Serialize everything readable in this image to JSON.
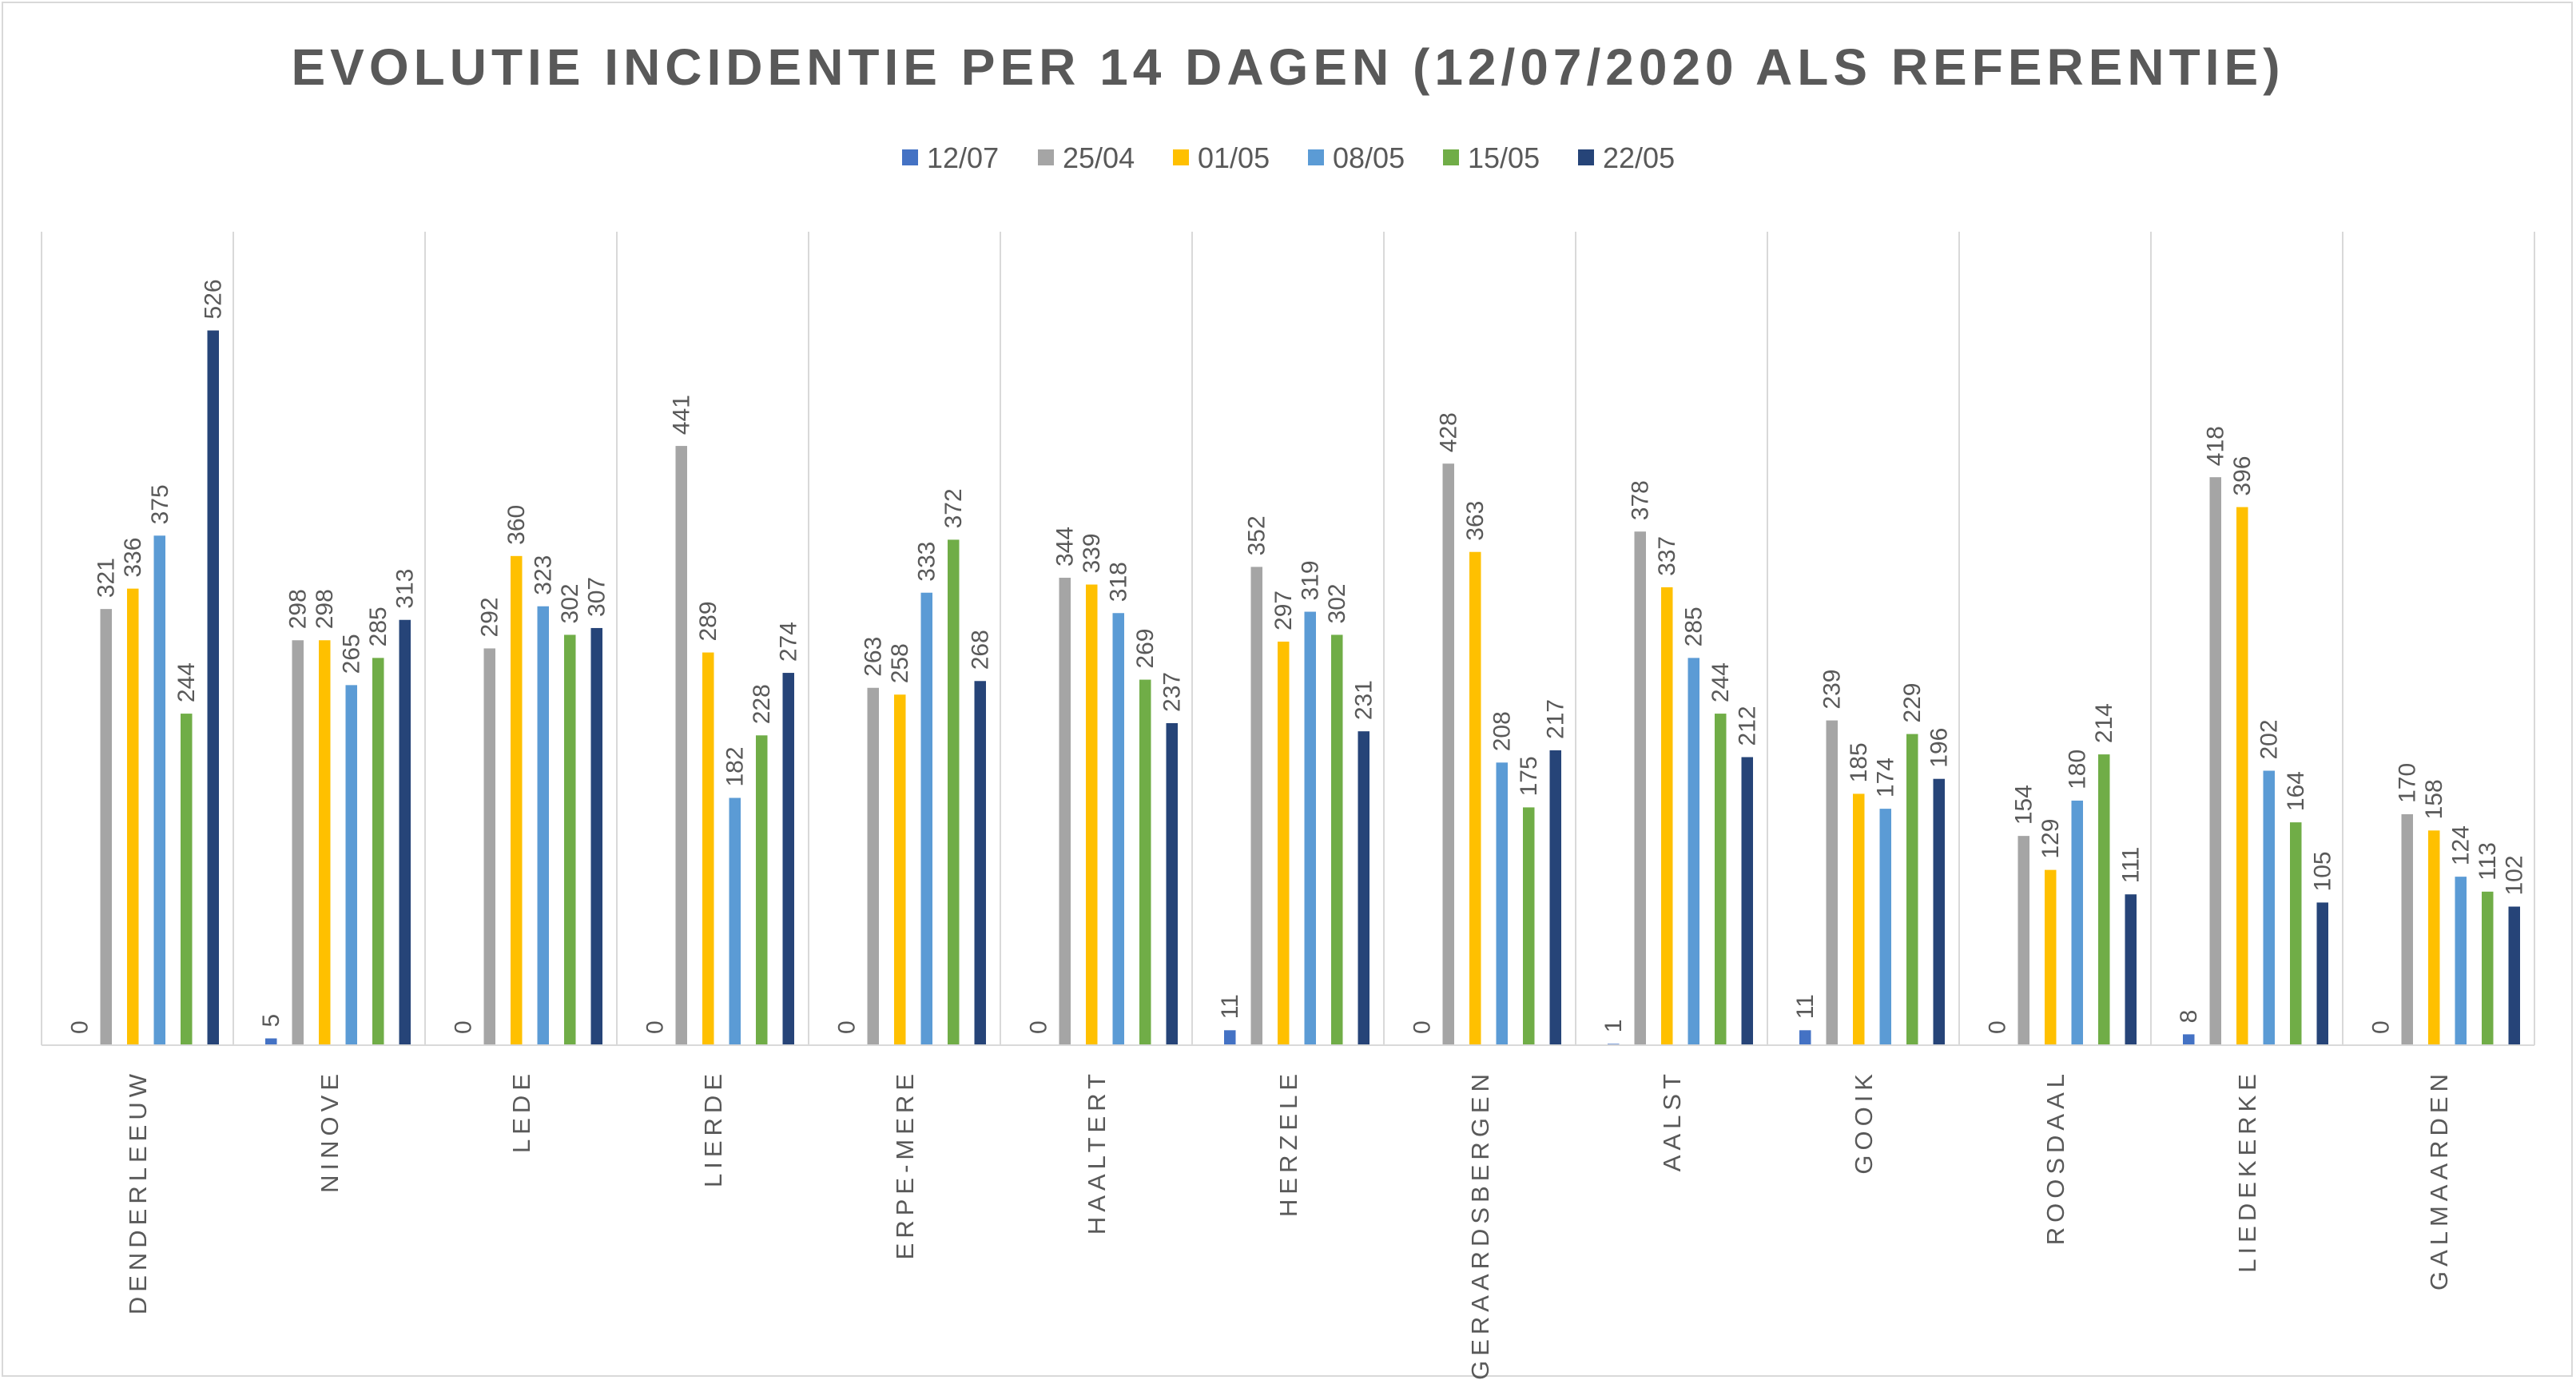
{
  "chart_data": {
    "type": "bar",
    "title": "EVOLUTIE INCIDENTIE PER 14 DAGEN (12/07/2020 ALS REFERENTIE)",
    "xlabel": "",
    "ylabel": "",
    "ylim": [
      0,
      600
    ],
    "grid": "vertical category separators",
    "legend_position": "top",
    "categories": [
      "DENDERLEEUW",
      "NINOVE",
      "LEDE",
      "LIERDE",
      "ERPE-MERE",
      "HAALTERT",
      "HERZELE",
      "GERAARDSBERGEN",
      "AALST",
      "GOOIK",
      "ROOSDAAL",
      "LIEDEKERKE",
      "GALMAARDEN"
    ],
    "series": [
      {
        "name": "12/07",
        "color": "#4472c4",
        "values": [
          0,
          5,
          0,
          0,
          0,
          0,
          11,
          0,
          1,
          11,
          0,
          8,
          0
        ]
      },
      {
        "name": "25/04",
        "color": "#a5a5a5",
        "values": [
          321,
          298,
          292,
          441,
          263,
          344,
          352,
          428,
          378,
          239,
          154,
          418,
          170
        ]
      },
      {
        "name": "01/05",
        "color": "#ffc000",
        "values": [
          336,
          298,
          360,
          289,
          258,
          339,
          297,
          363,
          337,
          185,
          129,
          396,
          158
        ]
      },
      {
        "name": "08/05",
        "color": "#5b9bd5",
        "values": [
          375,
          265,
          323,
          182,
          333,
          318,
          319,
          208,
          285,
          174,
          180,
          202,
          124
        ]
      },
      {
        "name": "15/05",
        "color": "#70ad47",
        "values": [
          244,
          285,
          302,
          228,
          372,
          269,
          302,
          175,
          244,
          229,
          214,
          164,
          113
        ]
      },
      {
        "name": "22/05",
        "color": "#264478",
        "values": [
          526,
          313,
          307,
          274,
          268,
          237,
          231,
          217,
          212,
          196,
          111,
          105,
          102
        ]
      }
    ]
  }
}
